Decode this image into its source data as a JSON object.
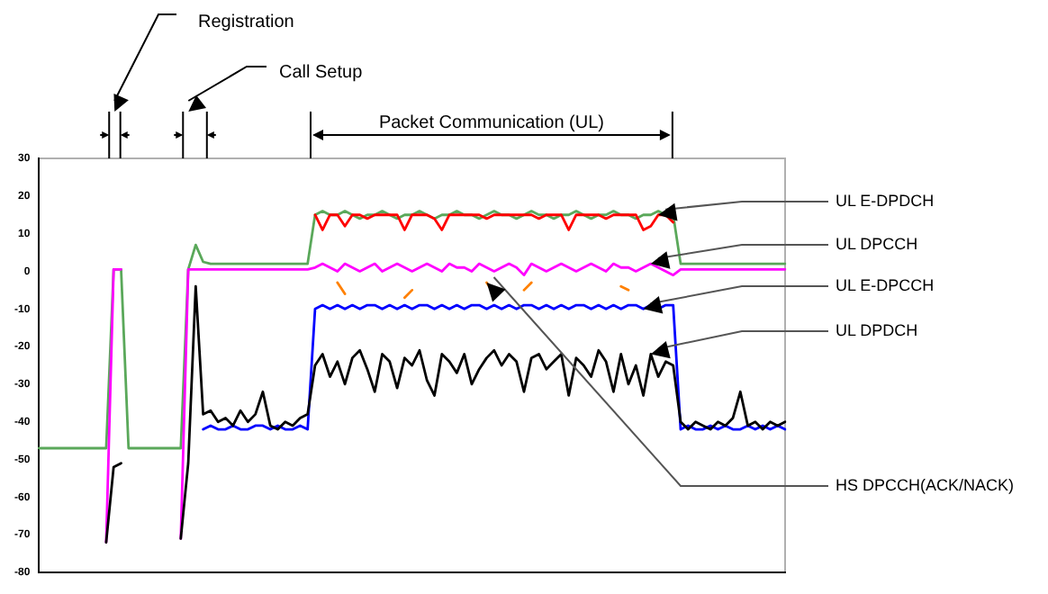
{
  "chart_data": {
    "type": "line",
    "categories": [
      null,
      null,
      null,
      null,
      null,
      null,
      null,
      null,
      null,
      null,
      null,
      null,
      null,
      null,
      null,
      null,
      null,
      null,
      null,
      null,
      null,
      null,
      null,
      null,
      null,
      null,
      null,
      null,
      null,
      null,
      null,
      null,
      null,
      null,
      null,
      null,
      null,
      null,
      null,
      null,
      null,
      null,
      null,
      null,
      null,
      null,
      null,
      null,
      null,
      null,
      null,
      null,
      null,
      null,
      null,
      null,
      null,
      null,
      null,
      null,
      null,
      null,
      null,
      null,
      null,
      null,
      null,
      null,
      null,
      null,
      null,
      null,
      null,
      null,
      null,
      null,
      null,
      null,
      null,
      null,
      null,
      null,
      null,
      null,
      null,
      null,
      null,
      null,
      null,
      null,
      null,
      null,
      null,
      null,
      null,
      null,
      null,
      null,
      null,
      null,
      null
    ],
    "ylim": [
      -80,
      30
    ],
    "yticks": [
      30,
      20,
      10,
      0,
      -10,
      -20,
      -30,
      -40,
      -50,
      -60,
      -70,
      -80
    ],
    "grid": false,
    "legend": false,
    "marker": "none",
    "tick_labels": "y",
    "annotations": [
      "Registration",
      "Call Setup",
      "Packet Communication (UL)"
    ],
    "series": [
      {
        "color": "#5aa85a",
        "values": [
          -47,
          -47,
          -47,
          -47,
          -47,
          -47,
          -47,
          -47,
          -47,
          -47,
          0.5,
          0.5,
          -47,
          -47,
          -47,
          -47,
          -47,
          -47,
          -47,
          -47,
          0.5,
          7,
          2.5,
          2,
          2,
          2,
          2,
          2,
          2,
          2,
          2,
          2,
          2,
          2,
          2,
          2,
          2,
          15,
          16,
          15,
          15,
          16,
          15,
          14,
          15,
          15,
          16,
          15,
          14,
          15,
          15,
          16,
          15,
          14,
          15,
          15,
          16,
          15,
          15,
          14,
          15,
          16,
          15,
          15,
          14,
          15,
          16,
          15,
          15,
          14,
          15,
          15,
          16,
          15,
          14,
          15,
          15,
          16,
          15,
          15,
          14,
          15,
          15,
          16,
          15,
          15,
          2,
          2,
          2,
          2,
          2,
          2,
          2,
          2,
          2,
          2,
          2,
          2,
          2,
          2,
          2
        ]
      },
      {
        "name": "UL E-DPDCH",
        "color": "#ff0000",
        "values": [
          null,
          null,
          null,
          null,
          null,
          null,
          null,
          null,
          null,
          null,
          null,
          null,
          null,
          null,
          null,
          null,
          null,
          null,
          null,
          null,
          null,
          null,
          null,
          null,
          null,
          null,
          null,
          null,
          null,
          null,
          null,
          null,
          null,
          null,
          null,
          null,
          null,
          15,
          11,
          15,
          15,
          12,
          15,
          15,
          14,
          15,
          15,
          15,
          15,
          11,
          15,
          15,
          15,
          14,
          11,
          15,
          15,
          15,
          15,
          15,
          14,
          15,
          15,
          15,
          15,
          15,
          15,
          14,
          15,
          15,
          15,
          11,
          15,
          15,
          15,
          15,
          14,
          15,
          15,
          15,
          15,
          11,
          12,
          15,
          15,
          13,
          null,
          null,
          null,
          null,
          null,
          null,
          null,
          null,
          null,
          null,
          null,
          null,
          null,
          null,
          null
        ]
      },
      {
        "name": "UL DPCCH",
        "color": "#ff00ff",
        "values": [
          null,
          null,
          null,
          null,
          null,
          null,
          null,
          null,
          null,
          -72,
          0.5,
          0.5,
          null,
          null,
          null,
          null,
          null,
          null,
          null,
          -71,
          0.5,
          0.5,
          0.5,
          0.5,
          0.5,
          0.5,
          0.5,
          0.5,
          0.5,
          0.5,
          0.5,
          0.5,
          0.5,
          0.5,
          0.5,
          0.5,
          0.5,
          1,
          2,
          1,
          0,
          2,
          1,
          0,
          1,
          2,
          0,
          1,
          2,
          1,
          0,
          1,
          2,
          1,
          0,
          2,
          1,
          1,
          0,
          2,
          1,
          0,
          1,
          2,
          1,
          -1,
          2,
          1,
          0,
          1,
          2,
          1,
          0,
          1,
          2,
          1,
          0,
          2,
          1,
          1,
          0,
          1,
          2,
          1,
          0,
          -1,
          0.5,
          0.5,
          0.5,
          0.5,
          0.5,
          0.5,
          0.5,
          0.5,
          0.5,
          0.5,
          0.5,
          0.5,
          0.5,
          0.5,
          0.5
        ]
      },
      {
        "name": "UL E-DPCCH",
        "color": "#0000ff",
        "values": [
          null,
          null,
          null,
          null,
          null,
          null,
          null,
          null,
          null,
          null,
          null,
          null,
          null,
          null,
          null,
          null,
          null,
          null,
          null,
          null,
          null,
          null,
          -42,
          -41,
          -42,
          -42,
          -41,
          -42,
          -42,
          -41,
          -41,
          -42,
          -41,
          -42,
          -42,
          -41,
          -42,
          -10,
          -9,
          -10,
          -9,
          -10,
          -9,
          -10,
          -9,
          -9,
          -10,
          -9,
          -10,
          -9,
          -10,
          -9,
          -9,
          -10,
          -9,
          -10,
          -9,
          -10,
          -9,
          -9,
          -10,
          -9,
          -10,
          -9,
          -10,
          -9,
          -9,
          -10,
          -9,
          -10,
          -9,
          -10,
          -9,
          -9,
          -10,
          -9,
          -10,
          -9,
          -10,
          -9,
          -9,
          -10,
          -9,
          -10,
          -9,
          -9,
          -42,
          -41,
          -42,
          -42,
          -41,
          -42,
          -41,
          -42,
          -42,
          -41,
          -42,
          -41,
          -42,
          -41,
          -42
        ]
      },
      {
        "name": "UL DPDCH",
        "color": "#000000",
        "values": [
          null,
          null,
          null,
          null,
          null,
          null,
          null,
          null,
          null,
          -72,
          -52,
          -51,
          null,
          null,
          null,
          null,
          null,
          null,
          null,
          -71,
          -51,
          -4,
          -38,
          -37,
          -40,
          -39,
          -41,
          -37,
          -40,
          -38,
          -32,
          -41,
          -42,
          -40,
          -41,
          -39,
          -38,
          -25,
          -22,
          -28,
          -24,
          -30,
          -23,
          -21,
          -26,
          -32,
          -22,
          -24,
          -31,
          -23,
          -25,
          -21,
          -29,
          -33,
          -22,
          -24,
          -27,
          -22,
          -30,
          -26,
          -23,
          -21,
          -25,
          -22,
          -24,
          -32,
          -23,
          -22,
          -26,
          -24,
          -22,
          -33,
          -23,
          -25,
          -28,
          -21,
          -24,
          -32,
          -22,
          -30,
          -25,
          -33,
          -22,
          -28,
          -24,
          -25,
          -40,
          -42,
          -40,
          -41,
          -42,
          -40,
          -41,
          -39,
          -32,
          -41,
          -40,
          -42,
          -40,
          -41,
          -40
        ]
      },
      {
        "name": "HS DPCCH(ACK/NACK)",
        "color": "#ff8000",
        "values": [
          null,
          null,
          null,
          null,
          null,
          null,
          null,
          null,
          null,
          null,
          null,
          null,
          null,
          null,
          null,
          null,
          null,
          null,
          null,
          null,
          null,
          null,
          null,
          null,
          null,
          null,
          null,
          null,
          null,
          null,
          null,
          null,
          null,
          null,
          null,
          null,
          null,
          null,
          null,
          null,
          -3,
          -6,
          null,
          null,
          null,
          null,
          null,
          null,
          null,
          -7,
          -5,
          null,
          null,
          null,
          null,
          null,
          null,
          null,
          null,
          null,
          -3,
          -6,
          null,
          null,
          null,
          -5,
          -3,
          null,
          null,
          null,
          null,
          null,
          null,
          null,
          null,
          null,
          null,
          null,
          -4,
          -5,
          null,
          null,
          null,
          null,
          null,
          null,
          null,
          null,
          null,
          null,
          null,
          null,
          null,
          null,
          null,
          null,
          null,
          null,
          null,
          null,
          null
        ]
      }
    ]
  }
}
